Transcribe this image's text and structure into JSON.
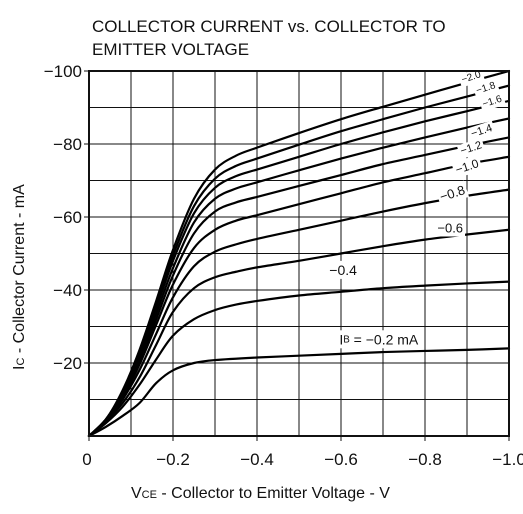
{
  "chart_data": {
    "type": "line",
    "title_line1": "COLLECTOR CURRENT vs. COLLECTOR TO",
    "title_line2": "EMITTER VOLTAGE",
    "xlabel_main": "V",
    "xlabel_sub": "CE",
    "xlabel_rest": " - Collector to Emitter Voltage - V",
    "ylabel_main": "I",
    "ylabel_sub": "C",
    "ylabel_rest": " - Collector Current - mA",
    "xlim": [
      0,
      -1.0
    ],
    "ylim": [
      0,
      -100
    ],
    "grid": true,
    "x_ticks": [
      {
        "value": 0,
        "label": "0"
      },
      {
        "value": -0.2,
        "label": "−0.2"
      },
      {
        "value": -0.4,
        "label": "−0.4"
      },
      {
        "value": -0.6,
        "label": "−0.6"
      },
      {
        "value": -0.8,
        "label": "−0.8"
      },
      {
        "value": -1.0,
        "label": "−1.0"
      }
    ],
    "y_ticks": [
      {
        "value": -20,
        "label": "−20"
      },
      {
        "value": -40,
        "label": "−40"
      },
      {
        "value": -60,
        "label": "−60"
      },
      {
        "value": -80,
        "label": "−80"
      },
      {
        "value": -100,
        "label": "−100"
      }
    ],
    "x_minor_grid": [
      -0.1,
      -0.3,
      -0.5,
      -0.7,
      -0.9
    ],
    "y_minor_grid": [
      -10,
      -30,
      -50,
      -70,
      -90
    ],
    "series": [
      {
        "ib": -0.2,
        "label_prefix": "I",
        "label_sub": "B",
        "label_text": " = −0.2 mA",
        "label_at": [
          -0.69,
          -26.5
        ],
        "label_size": 14,
        "label_rotate": 0,
        "points": [
          [
            0,
            0
          ],
          [
            -0.04,
            -2.5
          ],
          [
            -0.08,
            -5.5
          ],
          [
            -0.12,
            -9
          ],
          [
            -0.16,
            -14.5
          ],
          [
            -0.2,
            -18
          ],
          [
            -0.25,
            -20
          ],
          [
            -0.3,
            -20.8
          ],
          [
            -0.4,
            -21.5
          ],
          [
            -0.5,
            -22
          ],
          [
            -0.6,
            -22.5
          ],
          [
            -0.7,
            -23
          ],
          [
            -0.8,
            -23.3
          ],
          [
            -0.9,
            -23.6
          ],
          [
            -1.0,
            -24
          ]
        ]
      },
      {
        "ib": -0.4,
        "label_text": "−0.4",
        "label_at": [
          -0.605,
          -45.5
        ],
        "label_size": 14,
        "label_rotate": 0,
        "points": [
          [
            0,
            0
          ],
          [
            -0.04,
            -3.5
          ],
          [
            -0.08,
            -8
          ],
          [
            -0.12,
            -14
          ],
          [
            -0.16,
            -21
          ],
          [
            -0.2,
            -27.5
          ],
          [
            -0.25,
            -32
          ],
          [
            -0.3,
            -34.5
          ],
          [
            -0.35,
            -36
          ],
          [
            -0.4,
            -37
          ],
          [
            -0.5,
            -38.5
          ],
          [
            -0.6,
            -39.5
          ],
          [
            -0.7,
            -40.5
          ],
          [
            -0.8,
            -41.2
          ],
          [
            -0.9,
            -41.8
          ],
          [
            -1.0,
            -42.3
          ]
        ]
      },
      {
        "ib": -0.6,
        "label_text": "−0.6",
        "label_at": [
          -0.86,
          -57
        ],
        "label_size": 13,
        "label_rotate": 0,
        "points": [
          [
            0,
            0
          ],
          [
            -0.04,
            -4
          ],
          [
            -0.08,
            -9
          ],
          [
            -0.12,
            -16
          ],
          [
            -0.16,
            -25
          ],
          [
            -0.2,
            -34
          ],
          [
            -0.25,
            -40.5
          ],
          [
            -0.3,
            -43.5
          ],
          [
            -0.35,
            -45
          ],
          [
            -0.4,
            -46.2
          ],
          [
            -0.5,
            -48
          ],
          [
            -0.6,
            -50
          ],
          [
            -0.7,
            -52
          ],
          [
            -0.8,
            -53.8
          ],
          [
            -0.9,
            -55.2
          ],
          [
            -1.0,
            -56.5
          ]
        ]
      },
      {
        "ib": -0.8,
        "label_text": "−0.8",
        "label_at": [
          -0.865,
          -66.5
        ],
        "label_size": 13,
        "label_rotate": -18,
        "points": [
          [
            0,
            0
          ],
          [
            -0.04,
            -4
          ],
          [
            -0.08,
            -10
          ],
          [
            -0.12,
            -18
          ],
          [
            -0.16,
            -28
          ],
          [
            -0.2,
            -38
          ],
          [
            -0.25,
            -46.5
          ],
          [
            -0.3,
            -50.5
          ],
          [
            -0.35,
            -52.5
          ],
          [
            -0.4,
            -54
          ],
          [
            -0.5,
            -56.5
          ],
          [
            -0.6,
            -59
          ],
          [
            -0.7,
            -61.5
          ],
          [
            -0.8,
            -63.8
          ],
          [
            -0.9,
            -65.8
          ],
          [
            -1.0,
            -67.5
          ]
        ]
      },
      {
        "ib": -1.0,
        "label_text": "−1.0",
        "label_at": [
          -0.9,
          -73.8
        ],
        "label_size": 12,
        "label_rotate": -18,
        "points": [
          [
            0,
            0
          ],
          [
            -0.04,
            -4
          ],
          [
            -0.08,
            -10.5
          ],
          [
            -0.12,
            -19.5
          ],
          [
            -0.16,
            -30.5
          ],
          [
            -0.2,
            -41.5
          ],
          [
            -0.25,
            -51.5
          ],
          [
            -0.3,
            -56.5
          ],
          [
            -0.35,
            -59
          ],
          [
            -0.4,
            -60.5
          ],
          [
            -0.5,
            -63.5
          ],
          [
            -0.6,
            -66.5
          ],
          [
            -0.7,
            -69.5
          ],
          [
            -0.8,
            -72
          ],
          [
            -0.9,
            -74.5
          ],
          [
            -1.0,
            -76.5
          ]
        ]
      },
      {
        "ib": -1.2,
        "label_text": "−1.2",
        "label_at": [
          -0.91,
          -78.8
        ],
        "label_size": 11,
        "label_rotate": -18,
        "points": [
          [
            0,
            0
          ],
          [
            -0.04,
            -4.5
          ],
          [
            -0.08,
            -11
          ],
          [
            -0.12,
            -20.5
          ],
          [
            -0.16,
            -32
          ],
          [
            -0.2,
            -44
          ],
          [
            -0.25,
            -55.5
          ],
          [
            -0.3,
            -61.5
          ],
          [
            -0.35,
            -64
          ],
          [
            -0.4,
            -65.5
          ],
          [
            -0.5,
            -68.5
          ],
          [
            -0.6,
            -71.5
          ],
          [
            -0.7,
            -74.5
          ],
          [
            -0.8,
            -77
          ],
          [
            -0.9,
            -79.5
          ],
          [
            -1.0,
            -81.8
          ]
        ]
      },
      {
        "ib": -1.4,
        "label_text": "−1.4",
        "label_at": [
          -0.935,
          -83.5
        ],
        "label_size": 11,
        "label_rotate": -18,
        "points": [
          [
            0,
            0
          ],
          [
            -0.04,
            -4.5
          ],
          [
            -0.08,
            -11.5
          ],
          [
            -0.12,
            -21.5
          ],
          [
            -0.16,
            -33.5
          ],
          [
            -0.2,
            -46
          ],
          [
            -0.25,
            -58.5
          ],
          [
            -0.3,
            -65
          ],
          [
            -0.35,
            -67.8
          ],
          [
            -0.4,
            -69.5
          ],
          [
            -0.5,
            -72.8
          ],
          [
            -0.6,
            -76
          ],
          [
            -0.7,
            -79
          ],
          [
            -0.8,
            -81.8
          ],
          [
            -0.9,
            -84.5
          ],
          [
            -1.0,
            -87
          ]
        ]
      },
      {
        "ib": -1.6,
        "label_text": "−1.6",
        "label_at": [
          -0.96,
          -91.5
        ],
        "label_size": 10,
        "label_rotate": -18,
        "points": [
          [
            0,
            0
          ],
          [
            -0.04,
            -4.5
          ],
          [
            -0.08,
            -12
          ],
          [
            -0.12,
            -22.5
          ],
          [
            -0.16,
            -35
          ],
          [
            -0.2,
            -48
          ],
          [
            -0.25,
            -61
          ],
          [
            -0.3,
            -68
          ],
          [
            -0.35,
            -71.2
          ],
          [
            -0.4,
            -73
          ],
          [
            -0.5,
            -76.5
          ],
          [
            -0.6,
            -80
          ],
          [
            -0.7,
            -83.2
          ],
          [
            -0.8,
            -86.2
          ],
          [
            -0.9,
            -89
          ],
          [
            -1.0,
            -91.8
          ]
        ]
      },
      {
        "ib": -1.8,
        "label_text": "−1.8",
        "label_at": [
          -0.945,
          -95.2
        ],
        "label_size": 10,
        "label_rotate": -18,
        "points": [
          [
            0,
            0
          ],
          [
            -0.04,
            -4.5
          ],
          [
            -0.08,
            -12
          ],
          [
            -0.12,
            -23
          ],
          [
            -0.16,
            -36
          ],
          [
            -0.2,
            -49.5
          ],
          [
            -0.25,
            -63
          ],
          [
            -0.3,
            -70.5
          ],
          [
            -0.35,
            -74
          ],
          [
            -0.4,
            -76
          ],
          [
            -0.5,
            -79.8
          ],
          [
            -0.6,
            -83.5
          ],
          [
            -0.7,
            -86.8
          ],
          [
            -0.8,
            -90
          ],
          [
            -0.9,
            -93
          ],
          [
            -1.0,
            -96
          ]
        ]
      },
      {
        "ib": -2.0,
        "label_text": "−2.0",
        "label_at": [
          -0.91,
          -98.2
        ],
        "label_size": 10,
        "label_rotate": -18,
        "points": [
          [
            0,
            0
          ],
          [
            -0.04,
            -4.5
          ],
          [
            -0.08,
            -12.5
          ],
          [
            -0.12,
            -23.5
          ],
          [
            -0.16,
            -37
          ],
          [
            -0.2,
            -51
          ],
          [
            -0.25,
            -65
          ],
          [
            -0.3,
            -73
          ],
          [
            -0.35,
            -76.8
          ],
          [
            -0.4,
            -79
          ],
          [
            -0.5,
            -83
          ],
          [
            -0.6,
            -86.8
          ],
          [
            -0.7,
            -90.2
          ],
          [
            -0.8,
            -93.5
          ],
          [
            -0.9,
            -96.8
          ],
          [
            -1.0,
            -100
          ]
        ]
      }
    ]
  }
}
